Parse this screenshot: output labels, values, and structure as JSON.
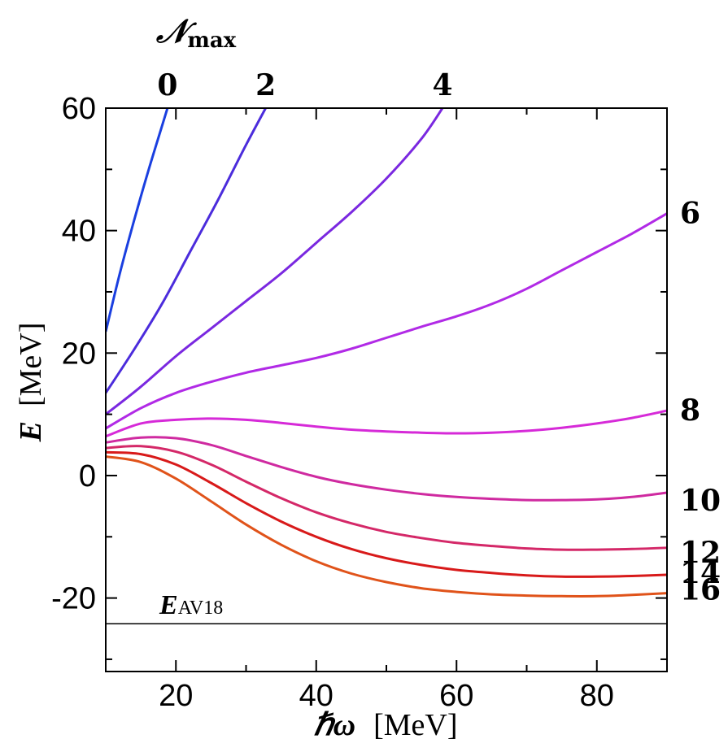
{
  "chart_data": {
    "type": "line",
    "xlabel_symbol": "ℏω",
    "xlabel_unit": "[MeV]",
    "ylabel_symbol": "E",
    "ylabel_unit": "[MeV]",
    "top_label_symbol": "𝒩",
    "top_label_sub": "max",
    "xlim": [
      10,
      90
    ],
    "ylim": [
      -32,
      60
    ],
    "x_ticks": [
      20,
      40,
      60,
      80
    ],
    "x_tick_labels": [
      "20",
      "40",
      "60",
      "80"
    ],
    "y_ticks": [
      60,
      40,
      20,
      0,
      -20
    ],
    "y_tick_labels": [
      "60",
      "40",
      "20",
      "0",
      "-20"
    ],
    "grid": false,
    "reference_line": {
      "label_main": "E",
      "label_sub": "AV18",
      "value": -24.2
    },
    "series": [
      {
        "name": "0",
        "color": "#1a3fe0",
        "label_position": "top",
        "points": [
          [
            10,
            23.5
          ],
          [
            12,
            33
          ],
          [
            14,
            41.5
          ],
          [
            16,
            49.5
          ],
          [
            18,
            57
          ],
          [
            18.8,
            60
          ]
        ]
      },
      {
        "name": "2",
        "color": "#4b2cdc",
        "label_position": "top",
        "points": [
          [
            10,
            13.5
          ],
          [
            14,
            20.5
          ],
          [
            18,
            28
          ],
          [
            22,
            36.5
          ],
          [
            26,
            45
          ],
          [
            30,
            54
          ],
          [
            32.8,
            60
          ]
        ]
      },
      {
        "name": "4",
        "color": "#7a28e0",
        "label_position": "top",
        "points": [
          [
            10,
            10
          ],
          [
            15,
            14.5
          ],
          [
            20,
            19.5
          ],
          [
            25,
            24
          ],
          [
            30,
            28.5
          ],
          [
            35,
            33
          ],
          [
            40,
            38
          ],
          [
            45,
            43
          ],
          [
            50,
            48.5
          ],
          [
            55,
            55
          ],
          [
            58,
            60
          ]
        ]
      },
      {
        "name": "6",
        "color": "#b12ae6",
        "label_position": "right",
        "points": [
          [
            10,
            7.7
          ],
          [
            15,
            11
          ],
          [
            20,
            13.5
          ],
          [
            25,
            15.3
          ],
          [
            30,
            16.8
          ],
          [
            35,
            18
          ],
          [
            40,
            19.2
          ],
          [
            45,
            20.7
          ],
          [
            50,
            22.5
          ],
          [
            55,
            24.3
          ],
          [
            60,
            26
          ],
          [
            65,
            28
          ],
          [
            70,
            30.5
          ],
          [
            75,
            33.5
          ],
          [
            80,
            36.5
          ],
          [
            85,
            39.5
          ],
          [
            90,
            42.8
          ]
        ]
      },
      {
        "name": "8",
        "color": "#d62ad8",
        "label_position": "right",
        "points": [
          [
            10,
            6.4
          ],
          [
            15,
            8.5
          ],
          [
            20,
            9.1
          ],
          [
            25,
            9.3
          ],
          [
            30,
            9.1
          ],
          [
            35,
            8.6
          ],
          [
            40,
            8
          ],
          [
            45,
            7.5
          ],
          [
            50,
            7.2
          ],
          [
            55,
            7
          ],
          [
            60,
            6.9
          ],
          [
            65,
            7
          ],
          [
            70,
            7.3
          ],
          [
            75,
            7.8
          ],
          [
            80,
            8.5
          ],
          [
            85,
            9.4
          ],
          [
            90,
            10.6
          ]
        ]
      },
      {
        "name": "10",
        "color": "#cf2aa0",
        "label_position": "right",
        "points": [
          [
            10,
            5.4
          ],
          [
            15,
            6.2
          ],
          [
            20,
            6.1
          ],
          [
            25,
            5
          ],
          [
            30,
            3.2
          ],
          [
            35,
            1.4
          ],
          [
            40,
            -0.2
          ],
          [
            45,
            -1.4
          ],
          [
            50,
            -2.3
          ],
          [
            55,
            -3
          ],
          [
            60,
            -3.5
          ],
          [
            65,
            -3.8
          ],
          [
            70,
            -4
          ],
          [
            75,
            -4
          ],
          [
            80,
            -3.9
          ],
          [
            85,
            -3.5
          ],
          [
            90,
            -2.8
          ]
        ]
      },
      {
        "name": "12",
        "color": "#d42868",
        "label_position": "right",
        "points": [
          [
            10,
            4.5
          ],
          [
            15,
            4.8
          ],
          [
            20,
            3.9
          ],
          [
            25,
            1.8
          ],
          [
            30,
            -1
          ],
          [
            35,
            -3.7
          ],
          [
            40,
            -6
          ],
          [
            45,
            -7.8
          ],
          [
            50,
            -9.2
          ],
          [
            55,
            -10.2
          ],
          [
            60,
            -11
          ],
          [
            65,
            -11.5
          ],
          [
            70,
            -11.9
          ],
          [
            75,
            -12.1
          ],
          [
            80,
            -12.1
          ],
          [
            85,
            -12
          ],
          [
            90,
            -11.8
          ]
        ]
      },
      {
        "name": "14",
        "color": "#d81a1a",
        "label_position": "right",
        "points": [
          [
            10,
            3.8
          ],
          [
            15,
            3.5
          ],
          [
            20,
            1.8
          ],
          [
            25,
            -1.2
          ],
          [
            30,
            -4.5
          ],
          [
            35,
            -7.5
          ],
          [
            40,
            -10
          ],
          [
            45,
            -12
          ],
          [
            50,
            -13.5
          ],
          [
            55,
            -14.6
          ],
          [
            60,
            -15.4
          ],
          [
            65,
            -15.9
          ],
          [
            70,
            -16.3
          ],
          [
            75,
            -16.5
          ],
          [
            80,
            -16.5
          ],
          [
            85,
            -16.4
          ],
          [
            90,
            -16.2
          ]
        ]
      },
      {
        "name": "16",
        "color": "#e0531a",
        "label_position": "right",
        "points": [
          [
            10,
            3.1
          ],
          [
            15,
            2.2
          ],
          [
            20,
            -0.5
          ],
          [
            25,
            -4.2
          ],
          [
            30,
            -8
          ],
          [
            35,
            -11.3
          ],
          [
            40,
            -14
          ],
          [
            45,
            -16
          ],
          [
            50,
            -17.4
          ],
          [
            55,
            -18.4
          ],
          [
            60,
            -19
          ],
          [
            65,
            -19.4
          ],
          [
            70,
            -19.6
          ],
          [
            75,
            -19.7
          ],
          [
            80,
            -19.7
          ],
          [
            85,
            -19.5
          ],
          [
            90,
            -19.2
          ]
        ]
      }
    ]
  }
}
